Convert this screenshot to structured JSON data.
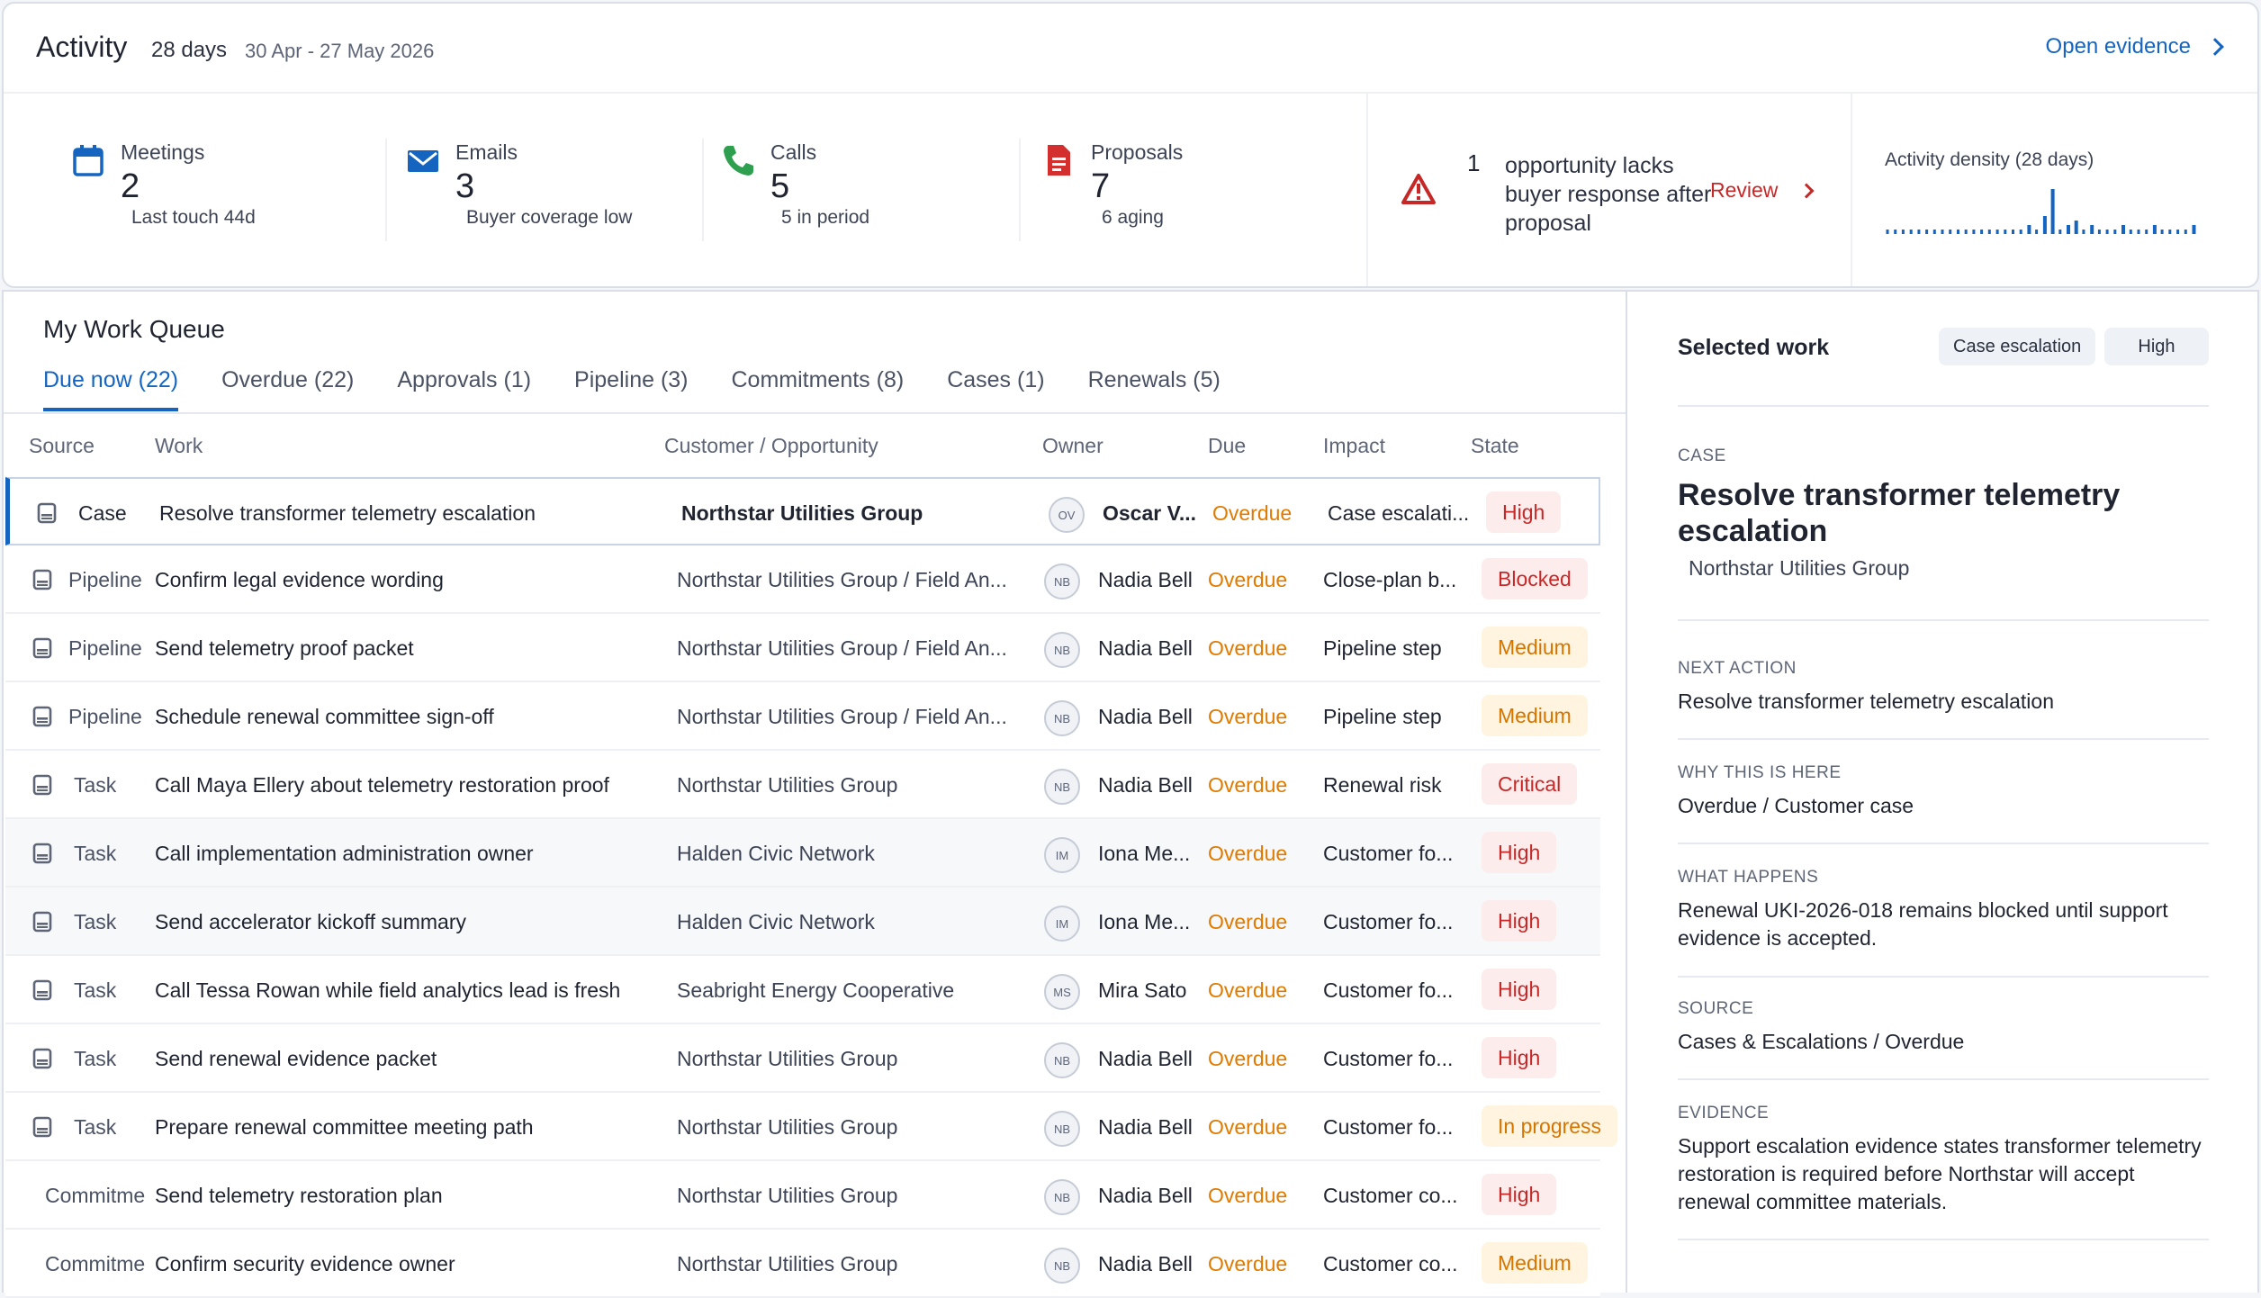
{
  "header": {
    "title": "Activity",
    "days": "28 days",
    "range": "30 Apr - 27 May 2026",
    "open_evidence": "Open evidence"
  },
  "metrics": [
    {
      "label": "Meetings",
      "value": "2",
      "sub": "Last touch 44d",
      "icon": "calendar-icon",
      "color": "#1565c0"
    },
    {
      "label": "Emails",
      "value": "3",
      "sub": "Buyer coverage low",
      "icon": "envelope-icon",
      "color": "#1565c0"
    },
    {
      "label": "Calls",
      "value": "5",
      "sub": "5 in period",
      "icon": "phone-icon",
      "color": "#2e9e4f"
    },
    {
      "label": "Proposals",
      "value": "7",
      "sub": "6 aging",
      "icon": "document-icon",
      "color": "#d32f2f"
    }
  ],
  "alert": {
    "count": "1",
    "text": "opportunity lacks buyer response after proposal",
    "action": "Review"
  },
  "density": {
    "label": "Activity density (28 days)",
    "values": [
      1,
      1,
      1,
      1,
      1,
      1,
      1,
      1,
      1,
      1,
      1,
      1,
      1,
      1,
      1,
      1,
      1,
      1,
      2,
      1,
      4,
      10,
      1,
      2,
      3,
      1,
      2,
      1,
      1,
      1,
      2,
      1,
      1,
      1,
      2,
      1,
      1,
      1,
      1,
      2
    ],
    "color": "#1565c0"
  },
  "queue": {
    "title": "My Work Queue",
    "tabs": [
      "Due now (22)",
      "Overdue (22)",
      "Approvals (1)",
      "Pipeline (3)",
      "Commitments (8)",
      "Cases (1)",
      "Renewals (5)"
    ],
    "columns": {
      "source": "Source",
      "work": "Work",
      "customer": "Customer / Opportunity",
      "owner": "Owner",
      "due": "Due",
      "impact": "Impact",
      "state": "State"
    },
    "rows": [
      {
        "source": "Case",
        "work": "Resolve transformer telemetry escalation",
        "customer": "Northstar Utilities Group",
        "initials": "OV",
        "owner": "Oscar V...",
        "due": "Overdue",
        "impact": "Case escalati...",
        "state": "High",
        "state_kind": "high"
      },
      {
        "source": "Pipeline",
        "work": "Confirm legal evidence wording",
        "customer": "Northstar Utilities Group / Field An...",
        "initials": "NB",
        "owner": "Nadia Bell",
        "due": "Overdue",
        "impact": "Close-plan b...",
        "state": "Blocked",
        "state_kind": "blocked"
      },
      {
        "source": "Pipeline",
        "work": "Send telemetry proof packet",
        "customer": "Northstar Utilities Group / Field An...",
        "initials": "NB",
        "owner": "Nadia Bell",
        "due": "Overdue",
        "impact": "Pipeline step",
        "state": "Medium",
        "state_kind": "medium"
      },
      {
        "source": "Pipeline",
        "work": "Schedule renewal committee sign-off",
        "customer": "Northstar Utilities Group / Field An...",
        "initials": "NB",
        "owner": "Nadia Bell",
        "due": "Overdue",
        "impact": "Pipeline step",
        "state": "Medium",
        "state_kind": "medium"
      },
      {
        "source": "Task",
        "work": "Call Maya Ellery about telemetry restoration proof",
        "customer": "Northstar Utilities Group",
        "initials": "NB",
        "owner": "Nadia Bell",
        "due": "Overdue",
        "impact": "Renewal risk",
        "state": "Critical",
        "state_kind": "critical"
      },
      {
        "source": "Task",
        "work": "Call implementation administration owner",
        "customer": "Halden Civic Network",
        "initials": "IM",
        "owner": "Iona Me...",
        "due": "Overdue",
        "impact": "Customer fo...",
        "state": "High",
        "state_kind": "high"
      },
      {
        "source": "Task",
        "work": "Send accelerator kickoff summary",
        "customer": "Halden Civic Network",
        "initials": "IM",
        "owner": "Iona Me...",
        "due": "Overdue",
        "impact": "Customer fo...",
        "state": "High",
        "state_kind": "high"
      },
      {
        "source": "Task",
        "work": "Call Tessa Rowan while field analytics lead is fresh",
        "customer": "Seabright Energy Cooperative",
        "initials": "MS",
        "owner": "Mira Sato",
        "due": "Overdue",
        "impact": "Customer fo...",
        "state": "High",
        "state_kind": "high"
      },
      {
        "source": "Task",
        "work": "Send renewal evidence packet",
        "customer": "Northstar Utilities Group",
        "initials": "NB",
        "owner": "Nadia Bell",
        "due": "Overdue",
        "impact": "Customer fo...",
        "state": "High",
        "state_kind": "high"
      },
      {
        "source": "Task",
        "work": "Prepare renewal committee meeting path",
        "customer": "Northstar Utilities Group",
        "initials": "NB",
        "owner": "Nadia Bell",
        "due": "Overdue",
        "impact": "Customer fo...",
        "state": "In progress",
        "state_kind": "inprogress"
      },
      {
        "source": "Commitme",
        "work": "Send telemetry restoration plan",
        "customer": "Northstar Utilities Group",
        "initials": "NB",
        "owner": "Nadia Bell",
        "due": "Overdue",
        "impact": "Customer co...",
        "state": "High",
        "state_kind": "high"
      },
      {
        "source": "Commitme",
        "work": "Confirm security evidence owner",
        "customer": "Northstar Utilities Group",
        "initials": "NB",
        "owner": "Nadia Bell",
        "due": "Overdue",
        "impact": "Customer co...",
        "state": "Medium",
        "state_kind": "medium"
      }
    ]
  },
  "side": {
    "title": "Selected work",
    "chips": [
      "Case escalation",
      "High"
    ],
    "caption_case": "CASE",
    "heading": "Resolve transformer telemetry escalation",
    "customer": "Northstar Utilities Group",
    "sections": [
      {
        "caption": "NEXT ACTION",
        "text": "Resolve transformer telemetry escalation"
      },
      {
        "caption": "WHY THIS IS HERE",
        "text": "Overdue / Customer case"
      },
      {
        "caption": "WHAT HAPPENS",
        "text": "Renewal UKI-2026-018 remains blocked until support evidence is accepted."
      },
      {
        "caption": "SOURCE",
        "text": "Cases & Escalations / Overdue"
      },
      {
        "caption": "EVIDENCE",
        "text": "Support escalation evidence states transformer telemetry restoration is required before Northstar will accept renewal committee materials."
      }
    ]
  }
}
